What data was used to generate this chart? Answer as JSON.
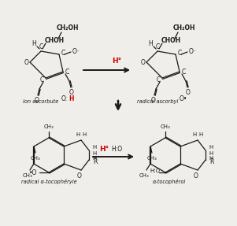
{
  "bg_color": "#f0eeea",
  "label_ion_ascorbate": "ion ascorbute",
  "label_radical_ascorbyl": "radical ascorbyl",
  "label_radical_toco": "radical α-tocophéryle",
  "label_toco": "α-tocophérol",
  "text_color_red": "#cc0000",
  "text_color_black": "#1a1a1a"
}
